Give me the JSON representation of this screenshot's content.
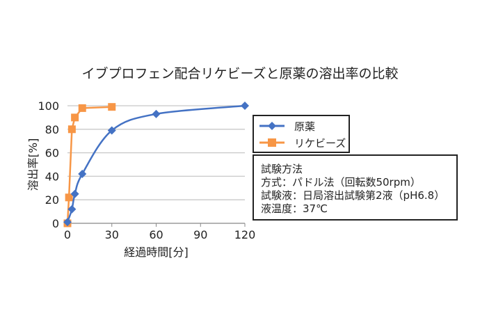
{
  "chart_data": {
    "type": "line",
    "title": "イブプロフェン配合リケビーズと原薬の溶出率の比較",
    "xlabel": "経過時間[分]",
    "ylabel": "溶出率[%]",
    "xlim": [
      0,
      120
    ],
    "ylim": [
      0,
      100
    ],
    "xticks": [
      0,
      30,
      60,
      90,
      120
    ],
    "yticks": [
      0,
      20,
      40,
      60,
      80,
      100
    ],
    "grid": "horizontal",
    "legend_placement": "right",
    "series": [
      {
        "name": "原薬",
        "color": "#4472C4",
        "marker": "diamond",
        "smooth": true,
        "x": [
          0,
          3,
          5,
          10,
          30,
          60,
          120
        ],
        "y": [
          1,
          12,
          25,
          42,
          79,
          93,
          100
        ]
      },
      {
        "name": "リケビーズ",
        "color": "#F79646",
        "marker": "square",
        "smooth": false,
        "x": [
          0,
          1,
          3,
          5,
          10,
          30
        ],
        "y": [
          0,
          22,
          80,
          90,
          98,
          99
        ]
      }
    ]
  },
  "info_box": {
    "lines": [
      "試験方法",
      "方式：パドル法（回転数50rpm）",
      "試験液：日局溶出試験第2液（pH6.8）",
      "液温度：37℃"
    ]
  }
}
